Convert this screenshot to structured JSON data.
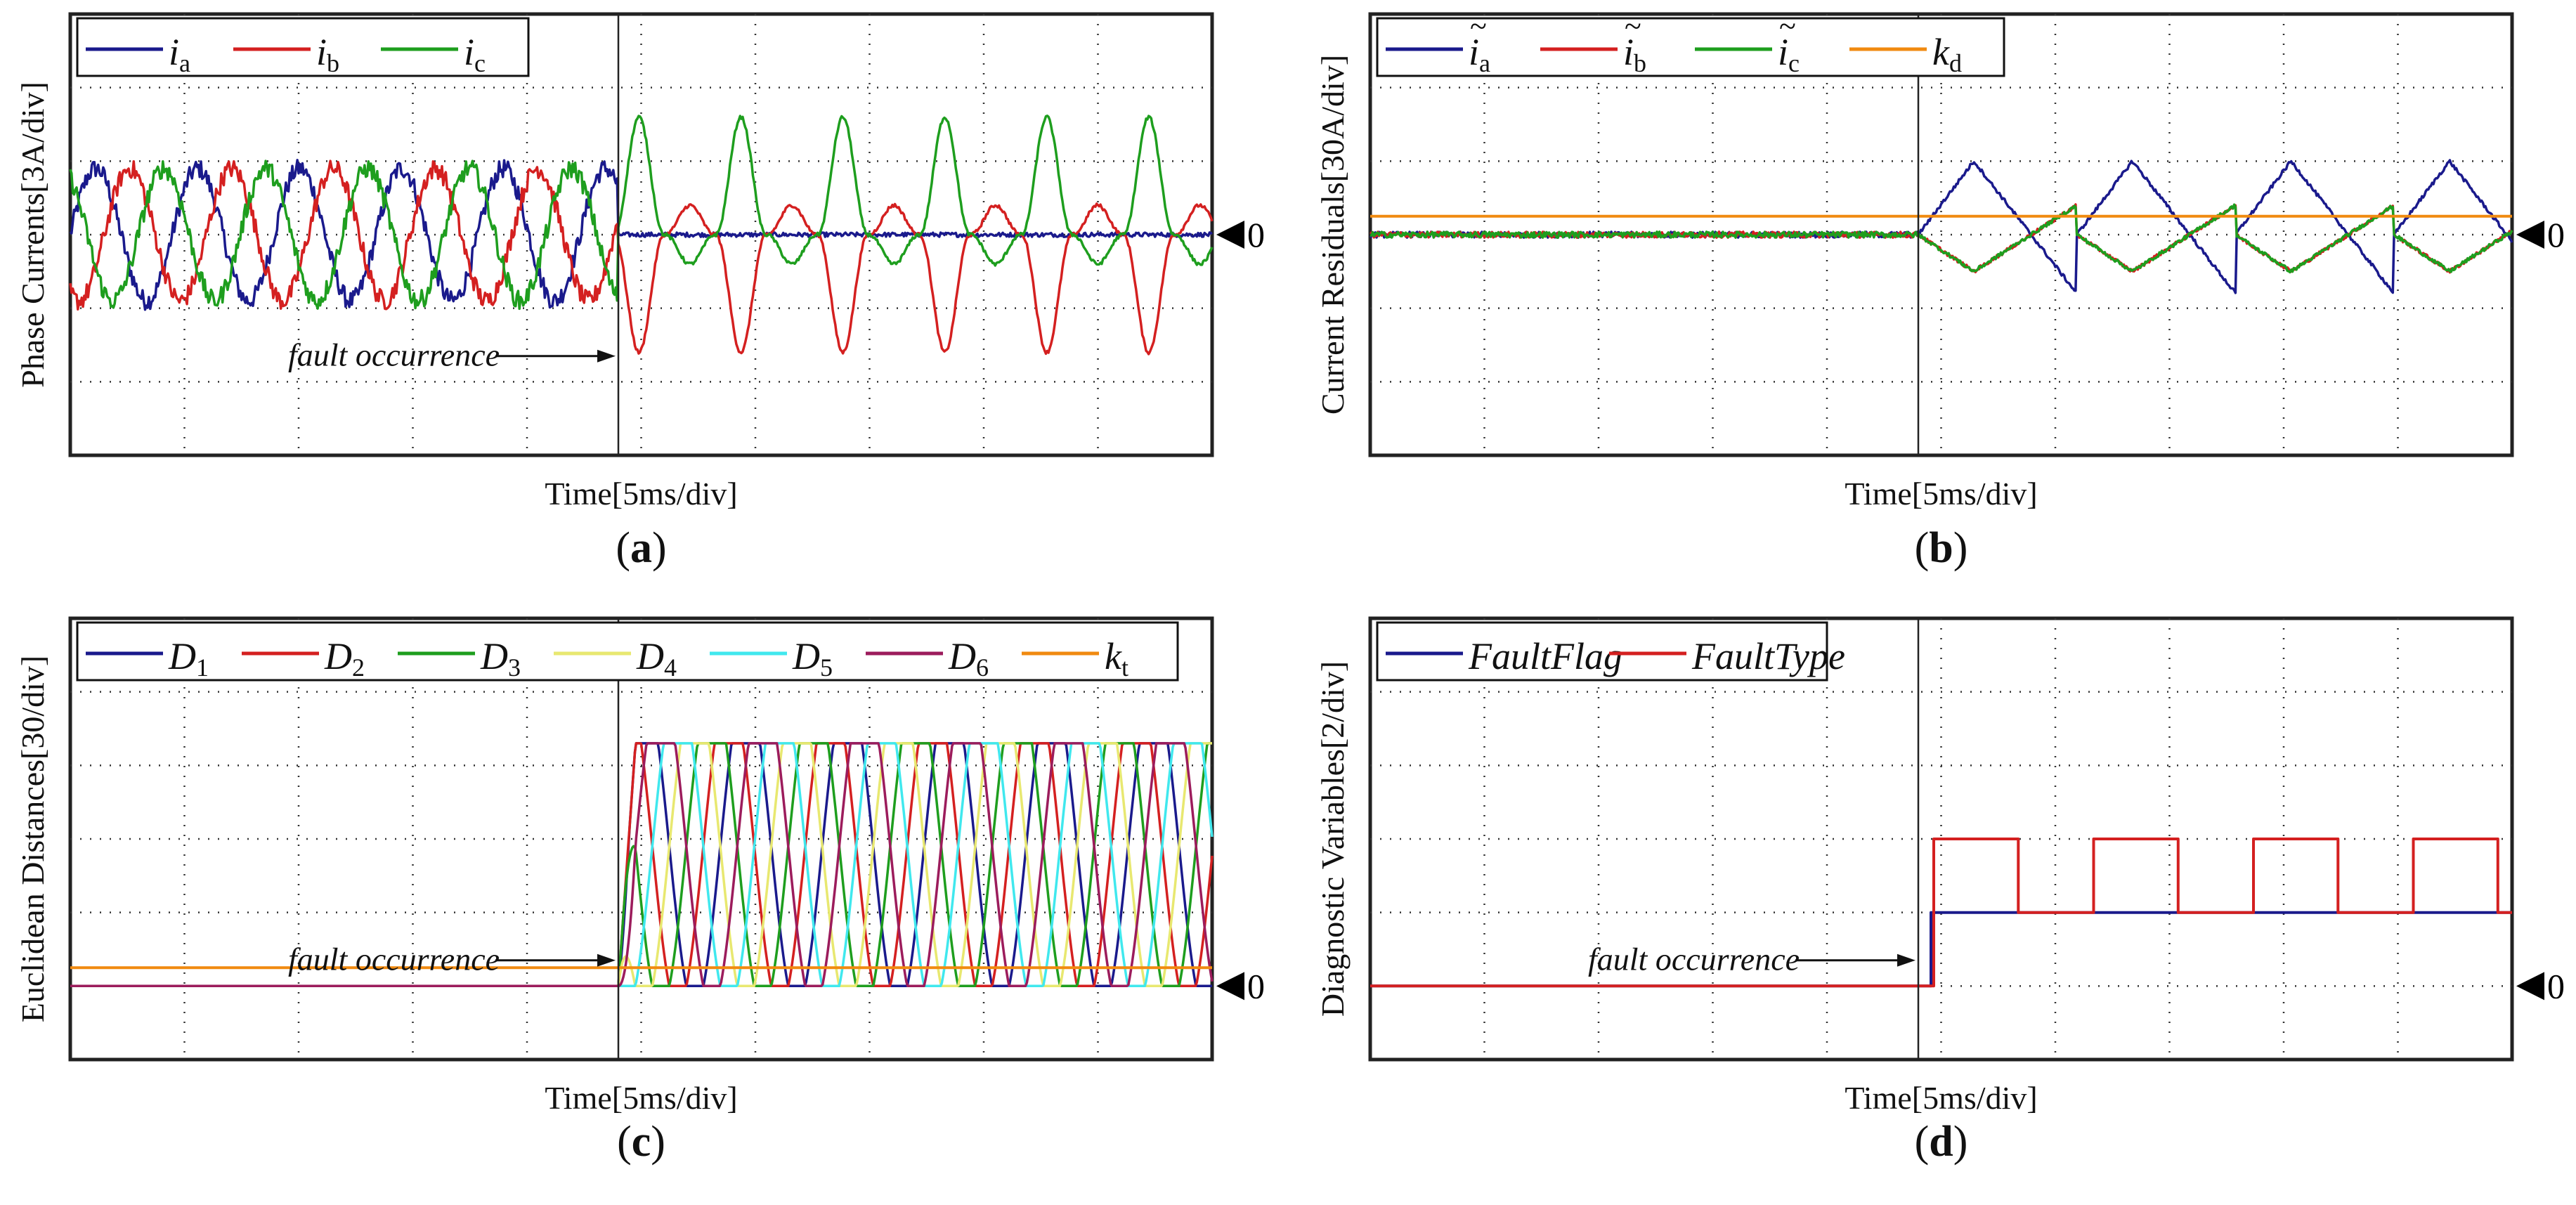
{
  "chart_data": [
    {
      "id": "a",
      "panel_label": "(a)",
      "type": "line",
      "ylabel": "Phase Currents[3A/div]",
      "xlabel": "Time[5ms/div]",
      "zero_marker": "0",
      "annotation": "fault occurrence",
      "x_divisions": 10,
      "y_divisions": 6,
      "fault_time_div": 4.8,
      "ylim_div": [
        -3,
        3
      ],
      "legend_location": "top-left",
      "series": [
        {
          "name": "i",
          "sub": "a",
          "tilde": false,
          "color": "#1a1a8c",
          "pre_amp_div": 0.9,
          "pre_phase_deg": 0,
          "post_shape": "flat",
          "post_amp_div": 0,
          "freq_cycles_per_div": 1.12,
          "noise_div": 0.13
        },
        {
          "name": "i",
          "sub": "b",
          "tilde": false,
          "color": "#d42020",
          "pre_amp_div": 0.9,
          "pre_phase_deg": -120,
          "post_shape": "peaks",
          "post_amp_div": -1.6,
          "freq_cycles_per_div": 1.12,
          "noise_div": 0.13
        },
        {
          "name": "i",
          "sub": "c",
          "tilde": false,
          "color": "#1e9e1e",
          "pre_amp_div": 0.9,
          "pre_phase_deg": 120,
          "post_shape": "peaks",
          "post_amp_div": 1.6,
          "freq_cycles_per_div": 1.12,
          "noise_div": 0.13
        }
      ]
    },
    {
      "id": "b",
      "panel_label": "(b)",
      "type": "line",
      "ylabel": "Current Residuals[30A/div]",
      "xlabel": "Time[5ms/div]",
      "zero_marker": "0",
      "annotation": "",
      "x_divisions": 10,
      "y_divisions": 6,
      "fault_time_div": 4.8,
      "ylim_div": [
        -3,
        3
      ],
      "legend_location": "top-left",
      "series": [
        {
          "name": "i",
          "sub": "a",
          "tilde": true,
          "color": "#1a1a8c",
          "post_shape": "triangle",
          "post_amp_div": 1.0,
          "freq_cycles_per_div": 0.72
        },
        {
          "name": "i",
          "sub": "b",
          "tilde": true,
          "color": "#d42020",
          "post_shape": "triangle",
          "post_amp_div": -0.5,
          "freq_cycles_per_div": 0.72
        },
        {
          "name": "i",
          "sub": "c",
          "tilde": true,
          "color": "#1e9e1e",
          "post_shape": "triangle",
          "post_amp_div": -0.5,
          "freq_cycles_per_div": 0.72
        },
        {
          "name": "k",
          "sub": "d",
          "tilde": false,
          "color": "#f08a10",
          "constant_div": 0.25
        }
      ]
    },
    {
      "id": "c",
      "panel_label": "(c)",
      "type": "line",
      "ylabel": "Euclidean Distances[30/div]",
      "xlabel": "Time[5ms/div]",
      "zero_marker": "0",
      "annotation": "fault occurrence",
      "x_divisions": 10,
      "y_divisions": 6,
      "fault_time_div": 4.8,
      "ylim_div": [
        -1,
        5
      ],
      "legend_location": "top-left",
      "saturation_div": 3.3,
      "series": [
        {
          "name": "D",
          "sub": "1",
          "color": "#1a1a8c",
          "phase_deg": 0
        },
        {
          "name": "D",
          "sub": "2",
          "color": "#d42020",
          "phase_deg": 60
        },
        {
          "name": "D",
          "sub": "3",
          "color": "#1e9e1e",
          "phase_deg": 120
        },
        {
          "name": "D",
          "sub": "4",
          "color": "#e8e870",
          "phase_deg": 180
        },
        {
          "name": "D",
          "sub": "5",
          "color": "#40e8ee",
          "phase_deg": 240
        },
        {
          "name": "D",
          "sub": "6",
          "color": "#9c1c5c",
          "phase_deg": 300
        },
        {
          "name": "k",
          "sub": "t",
          "color": "#f08a10",
          "constant_div": 0.25
        }
      ]
    },
    {
      "id": "d",
      "panel_label": "(d)",
      "type": "line",
      "ylabel": "Diagnostic Variables[2/div]",
      "xlabel": "Time[5ms/div]",
      "zero_marker": "0",
      "annotation": "fault occurrence",
      "x_divisions": 10,
      "y_divisions": 6,
      "fault_time_div": 4.8,
      "ylim_div": [
        -1,
        5
      ],
      "legend_location": "top-left",
      "series": [
        {
          "name": "FaultFlag",
          "sub": "",
          "italic": true,
          "color": "#1a1a8c",
          "pre_value": 0,
          "post_value": 1
        },
        {
          "name": "FaultType",
          "sub": "",
          "italic": true,
          "color": "#d42020",
          "pre_value": 0,
          "high_value": 2,
          "low_value": 1,
          "pulse_period_div": 1.4,
          "pulse_width_div": 0.74
        }
      ]
    }
  ]
}
